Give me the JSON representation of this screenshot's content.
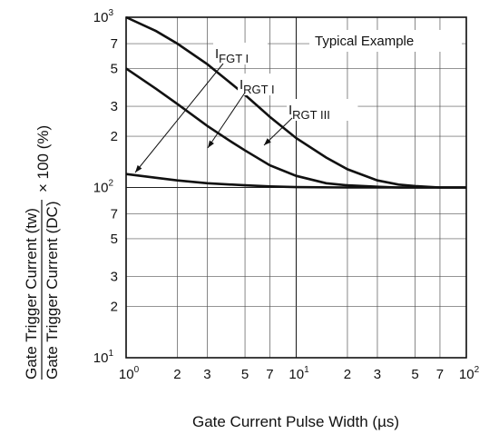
{
  "chart_data": {
    "type": "line",
    "xscale": "log",
    "yscale": "log",
    "xlim": [
      1,
      100
    ],
    "ylim": [
      10,
      1000
    ],
    "grid": true,
    "annotation": "Typical Example",
    "xlabel": "Gate Current Pulse Width",
    "xlabel_unit": "(µs)",
    "ylabel": {
      "numerator": "Gate Trigger Current  (tw)",
      "denominator": "Gate Trigger Current  (DC)",
      "suffix": "× 100 (%)"
    },
    "x_ticks": [
      {
        "v": 1,
        "base": "10",
        "exp": "0"
      },
      {
        "v": 2,
        "base": "2",
        "exp": ""
      },
      {
        "v": 3,
        "base": "3",
        "exp": ""
      },
      {
        "v": 5,
        "base": "5",
        "exp": ""
      },
      {
        "v": 7,
        "base": "7",
        "exp": ""
      },
      {
        "v": 10,
        "base": "10",
        "exp": "1"
      },
      {
        "v": 20,
        "base": "2",
        "exp": ""
      },
      {
        "v": 30,
        "base": "3",
        "exp": ""
      },
      {
        "v": 50,
        "base": "5",
        "exp": ""
      },
      {
        "v": 70,
        "base": "7",
        "exp": ""
      },
      {
        "v": 100,
        "base": "10",
        "exp": "2"
      }
    ],
    "y_ticks": [
      {
        "v": 10,
        "base": "10",
        "exp": "1"
      },
      {
        "v": 20,
        "base": "2",
        "exp": ""
      },
      {
        "v": 30,
        "base": "3",
        "exp": ""
      },
      {
        "v": 50,
        "base": "5",
        "exp": ""
      },
      {
        "v": 70,
        "base": "7",
        "exp": ""
      },
      {
        "v": 100,
        "base": "10",
        "exp": "2"
      },
      {
        "v": 200,
        "base": "2",
        "exp": ""
      },
      {
        "v": 300,
        "base": "3",
        "exp": ""
      },
      {
        "v": 500,
        "base": "5",
        "exp": ""
      },
      {
        "v": 700,
        "base": "7",
        "exp": ""
      },
      {
        "v": 1000,
        "base": "10",
        "exp": "3"
      }
    ],
    "series": [
      {
        "name": "IFGT I",
        "label_main": "I",
        "label_sub": "FGT I",
        "x": [
          1,
          1.5,
          2,
          3,
          4,
          5,
          7,
          10,
          15,
          20,
          30,
          40,
          50,
          70,
          100
        ],
        "y": [
          1000,
          830,
          700,
          530,
          420,
          350,
          260,
          195,
          150,
          128,
          110,
          104,
          102,
          100,
          100
        ]
      },
      {
        "name": "IRGT I",
        "label_main": "I",
        "label_sub": "RGT I",
        "x": [
          1,
          1.5,
          2,
          3,
          4,
          5,
          7,
          10,
          15,
          20,
          30,
          40,
          50,
          70,
          100
        ],
        "y": [
          500,
          380,
          310,
          230,
          190,
          165,
          135,
          117,
          106,
          103,
          101,
          100,
          100,
          100,
          100
        ]
      },
      {
        "name": "IRGT III",
        "label_main": "I",
        "label_sub": "RGT III",
        "x": [
          1,
          1.5,
          2,
          3,
          5,
          7,
          10,
          20,
          30,
          50,
          100
        ],
        "y": [
          120,
          114,
          110,
          106,
          103,
          101.5,
          100.5,
          100,
          100,
          100,
          100
        ]
      }
    ]
  }
}
